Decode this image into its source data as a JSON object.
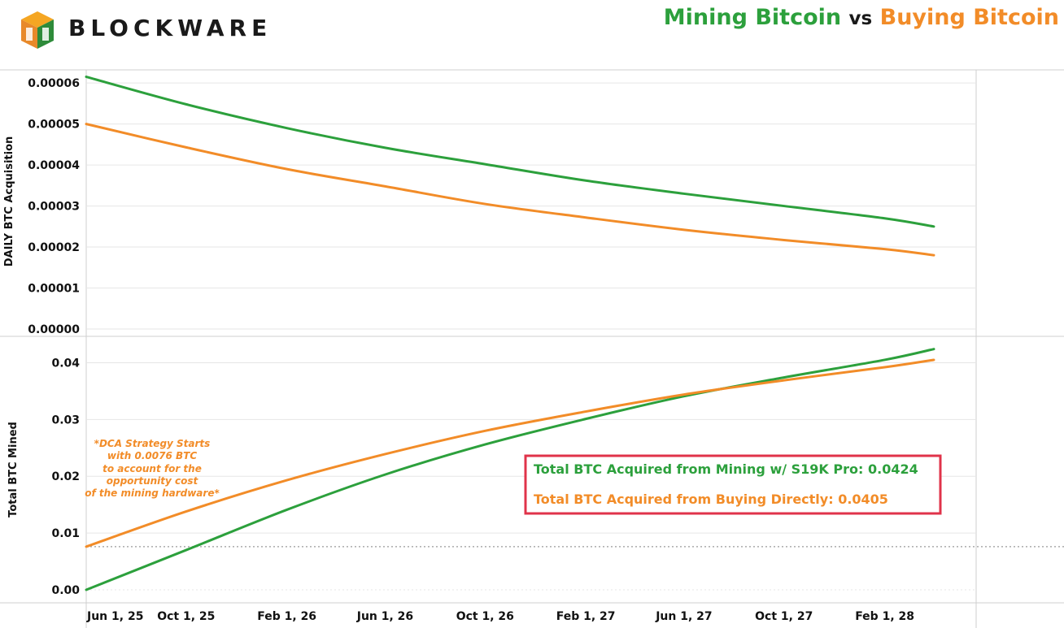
{
  "header": {
    "brand": "BLOCKWARE",
    "title_mining": "Mining Bitcoin",
    "title_vs": "vs",
    "title_buying": "Buying Bitcoin"
  },
  "colors": {
    "mining": "#2ca03c",
    "buying": "#f28c28",
    "highlight_box": "#e0334a",
    "grid": "#e6e6e6"
  },
  "chart_data": [
    {
      "type": "line",
      "ylabel": "DAILY BTC Acquisition",
      "x": [
        "2025-06-01",
        "2025-10-01",
        "2026-02-01",
        "2026-06-01",
        "2026-10-01",
        "2027-02-01",
        "2027-06-01",
        "2027-10-01",
        "2028-02-01",
        "2028-04-01"
      ],
      "x_tick_labels": [
        "Jun 1, 25",
        "Oct 1, 25",
        "Feb 1, 26",
        "Jun 1, 26",
        "Oct 1, 26",
        "Feb 1, 27",
        "Jun 1, 27",
        "Oct 1, 27",
        "Feb 1, 28"
      ],
      "y_tick_labels": [
        "0.00000",
        "0.00001",
        "0.00002",
        "0.00003",
        "0.00004",
        "0.00005",
        "0.00006"
      ],
      "ylim": [
        0,
        6.3e-05
      ],
      "series": [
        {
          "name": "Mining",
          "values": [
            6.15e-05,
            5.48e-05,
            4.9e-05,
            4.42e-05,
            4.02e-05,
            3.62e-05,
            3.3e-05,
            3e-05,
            2.7e-05,
            2.5e-05
          ]
        },
        {
          "name": "Buying",
          "values": [
            5e-05,
            4.43e-05,
            3.9e-05,
            3.48e-05,
            3.05e-05,
            2.72e-05,
            2.42e-05,
            2.17e-05,
            1.95e-05,
            1.8e-05
          ]
        }
      ]
    },
    {
      "type": "line",
      "ylabel": "Total BTC Mined",
      "x": [
        "2025-06-01",
        "2025-10-01",
        "2026-02-01",
        "2026-06-01",
        "2026-10-01",
        "2027-02-01",
        "2027-06-01",
        "2027-10-01",
        "2028-02-01",
        "2028-04-01"
      ],
      "x_tick_labels": [
        "Jun 1, 25",
        "Oct 1, 25",
        "Feb 1, 26",
        "Jun 1, 26",
        "Oct 1, 26",
        "Feb 1, 27",
        "Jun 1, 27",
        "Oct 1, 27",
        "Feb 1, 28"
      ],
      "y_tick_labels": [
        "0.00",
        "0.01",
        "0.02",
        "0.03",
        "0.04"
      ],
      "ylim": [
        0,
        0.0445
      ],
      "reference_line": 0.0076,
      "series": [
        {
          "name": "Mining",
          "values": [
            0.0,
            0.007,
            0.0141,
            0.0203,
            0.0256,
            0.0301,
            0.0341,
            0.0374,
            0.0405,
            0.0424
          ]
        },
        {
          "name": "Buying",
          "values": [
            0.0076,
            0.0138,
            0.0193,
            0.0239,
            0.028,
            0.0314,
            0.0344,
            0.0369,
            0.0392,
            0.0405
          ]
        }
      ],
      "annotation": [
        "*DCA Strategy Starts",
        "with 0.0076 BTC",
        "to account for the",
        "opportunity cost",
        "of the mining hardware*"
      ],
      "summary": {
        "mining": "Total BTC Acquired from Mining w/ S19K Pro: 0.0424",
        "buying": "Total BTC Acquired from Buying Directly: 0.0405"
      }
    }
  ]
}
